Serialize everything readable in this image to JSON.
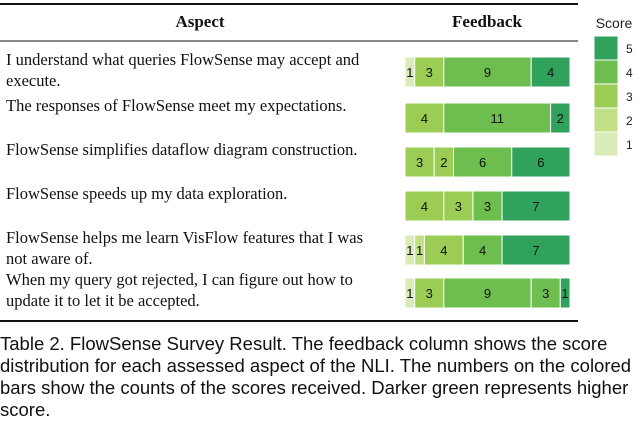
{
  "table": {
    "header_aspect": "Aspect",
    "header_feedback": "Feedback"
  },
  "legend": {
    "title": "Score",
    "levels": [
      "5",
      "4",
      "3",
      "2",
      "1"
    ],
    "colors": [
      "#31a25b",
      "#6dbd4f",
      "#9bcc54",
      "#c2df85",
      "#d9ebb6"
    ]
  },
  "chart_data": {
    "type": "bar",
    "stacked": true,
    "orientation": "horizontal",
    "score_order": [
      1,
      2,
      3,
      4,
      5
    ],
    "rows": [
      {
        "aspect_lines": [
          "I understand what queries FlowSense may accept and",
          "execute."
        ],
        "counts": [
          1,
          0,
          3,
          9,
          4
        ],
        "labels": [
          "1",
          "",
          "3",
          "9",
          "4"
        ]
      },
      {
        "aspect_lines": [
          "The responses of FlowSense meet my expectations."
        ],
        "counts": [
          0,
          0,
          4,
          11,
          2
        ],
        "labels": [
          "",
          "",
          "4",
          "11",
          "2"
        ]
      },
      {
        "aspect_lines": [
          "FlowSense simplifies dataflow diagram construction."
        ],
        "counts": [
          0,
          0,
          3,
          2,
          6,
          6
        ],
        "labels": [
          "",
          "",
          "3",
          "2",
          "6",
          "6"
        ],
        "segment_scores": [
          1,
          2,
          3,
          3,
          4,
          5
        ]
      },
      {
        "aspect_lines": [
          "FlowSense speeds up my data exploration."
        ],
        "counts": [
          0,
          0,
          4,
          3,
          3,
          7
        ],
        "labels": [
          "",
          "",
          "4",
          "3",
          "3",
          "7"
        ],
        "segment_scores": [
          1,
          2,
          3,
          3,
          4,
          5
        ]
      },
      {
        "aspect_lines": [
          "FlowSense helps me learn VisFlow features that I was",
          "not aware of."
        ],
        "counts": [
          1,
          1,
          4,
          4,
          7
        ],
        "labels": [
          "1",
          "1",
          "4",
          "4",
          "7"
        ]
      },
      {
        "aspect_lines": [
          "When my query got rejected, I can figure out how to",
          "update it to let it be accepted."
        ],
        "counts": [
          1,
          0,
          3,
          9,
          3,
          1
        ],
        "labels": [
          "1",
          "",
          "3",
          "9",
          "3",
          "1"
        ],
        "segment_scores": [
          1,
          2,
          3,
          4,
          4,
          5
        ]
      }
    ]
  },
  "caption": "Table 2. FlowSense Survey Result. The feedback column shows the score distribution for each assessed aspect of the NLI. The numbers on the colored bars show the counts of the scores received. Darker green represents higher score."
}
